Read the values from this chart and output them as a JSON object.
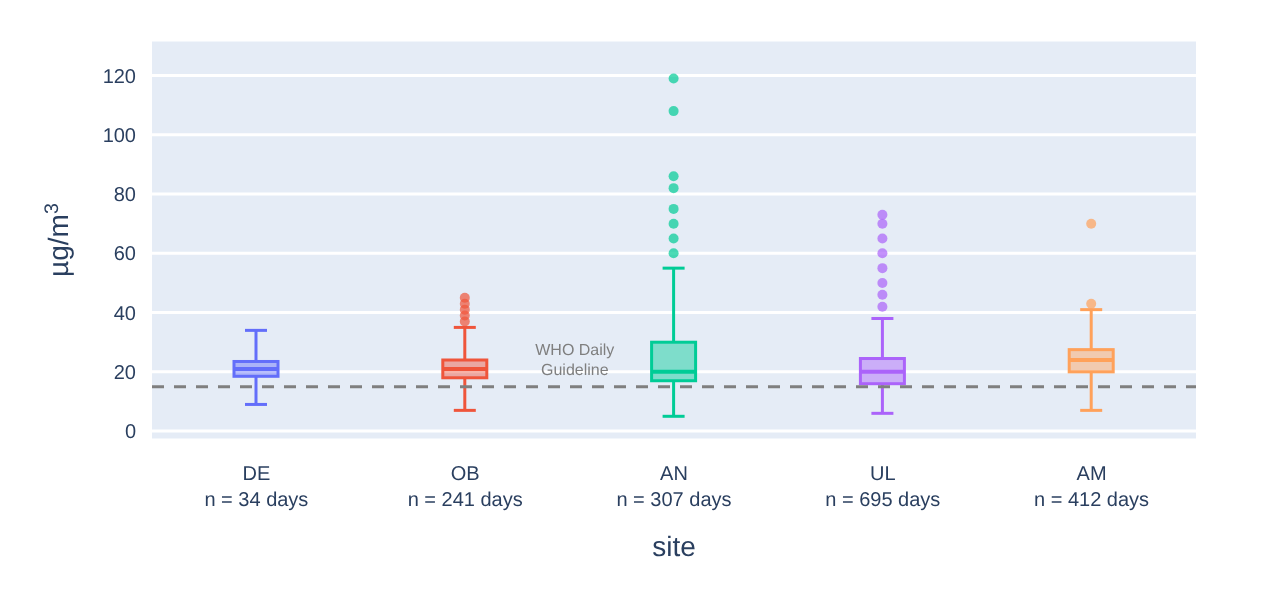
{
  "chart_data": {
    "type": "box",
    "xlabel": "site",
    "ylabel": "µg/m$^{3}$",
    "categories": [
      "DE\nn = 34 days",
      "OB\nn = 241 days",
      "AN\nn = 307 days",
      "UL\nn = 695 days",
      "AM\nn = 412 days"
    ],
    "colors": [
      "#636efa",
      "#ef553b",
      "#00cc96",
      "#ab63fa",
      "#ffa15a"
    ],
    "boxes": [
      {
        "low": 9,
        "q1": 18.5,
        "median": 21,
        "q3": 23.5,
        "high": 34
      },
      {
        "low": 7,
        "q1": 18,
        "median": 21,
        "q3": 24,
        "high": 35,
        "outliers": [
          37,
          39,
          41,
          43,
          45
        ]
      },
      {
        "low": 5,
        "q1": 17,
        "median": 20,
        "q3": 30,
        "high": 55,
        "outliers": [
          60,
          65,
          70,
          75,
          82,
          86,
          108,
          119
        ]
      },
      {
        "low": 6,
        "q1": 16,
        "median": 20,
        "q3": 24.5,
        "high": 38,
        "outliers": [
          42,
          46,
          50,
          55,
          60,
          65,
          70,
          73
        ]
      },
      {
        "low": 7,
        "q1": 20,
        "median": 24,
        "q3": 27.5,
        "high": 41,
        "outliers": [
          43,
          70
        ]
      }
    ],
    "ylim": [
      -3,
      132
    ],
    "yticks": [
      0,
      20,
      40,
      60,
      80,
      100,
      120
    ],
    "grid": "y",
    "ref_lines": [
      {
        "axis": "y",
        "value": 15,
        "label": "WHO Daily Guideline",
        "color": "#7f7f7f",
        "line_style": "dashed"
      }
    ]
  }
}
